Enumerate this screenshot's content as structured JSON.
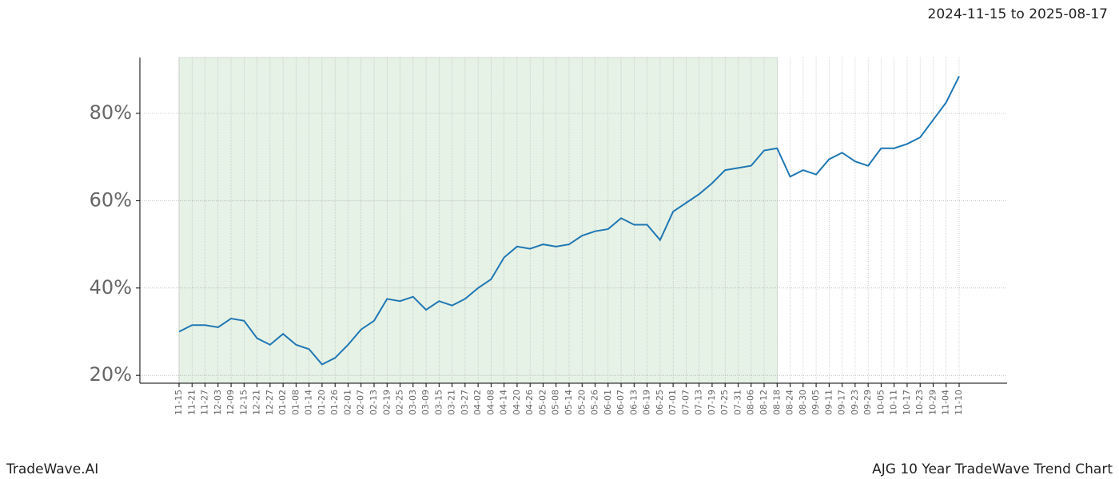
{
  "header": {
    "date_range": "2024-11-15 to 2025-08-17"
  },
  "footer": {
    "brand": "TradeWave.AI",
    "chart_name": "AJG 10 Year TradeWave Trend Chart"
  },
  "chart_data": {
    "type": "line",
    "categories": [
      "11-15",
      "11-21",
      "11-27",
      "12-03",
      "12-09",
      "12-15",
      "12-21",
      "12-27",
      "01-02",
      "01-08",
      "01-14",
      "01-20",
      "01-26",
      "02-01",
      "02-07",
      "02-13",
      "02-19",
      "02-25",
      "03-03",
      "03-09",
      "03-15",
      "03-21",
      "03-27",
      "04-02",
      "04-08",
      "04-14",
      "04-20",
      "04-26",
      "05-02",
      "05-08",
      "05-14",
      "05-20",
      "05-26",
      "06-01",
      "06-07",
      "06-13",
      "06-19",
      "06-25",
      "07-01",
      "07-07",
      "07-13",
      "07-19",
      "07-25",
      "07-31",
      "08-06",
      "08-12",
      "08-18",
      "08-24",
      "08-30",
      "09-05",
      "09-11",
      "09-17",
      "09-23",
      "09-29",
      "10-05",
      "10-11",
      "10-17",
      "10-23",
      "10-29",
      "11-04",
      "11-10"
    ],
    "values": [
      30,
      31.5,
      31.5,
      31,
      33,
      32.5,
      28.5,
      27,
      29.5,
      27,
      26,
      22.5,
      24,
      27,
      30.5,
      32.5,
      37.5,
      37,
      38,
      35,
      37,
      36,
      37.5,
      40,
      42,
      47,
      49.5,
      49,
      50,
      49.5,
      50,
      52,
      53,
      53.5,
      56,
      54.5,
      54.5,
      51,
      57.5,
      59.5,
      61.5,
      64,
      67,
      67.5,
      68,
      71.5,
      72,
      65.5,
      67,
      66,
      69.5,
      71,
      69,
      68,
      72,
      72,
      73,
      74.5,
      78.5,
      82.5,
      88.5
    ],
    "color": "#1f77b4",
    "shaded_range": [
      0,
      46
    ],
    "shade_color": "#e6f2e6",
    "ylim": [
      18.2,
      92.8
    ],
    "yticks": [
      {
        "value": 20,
        "label": "20%"
      },
      {
        "value": 40,
        "label": "40%"
      },
      {
        "value": 60,
        "label": "60%"
      },
      {
        "value": 80,
        "label": "80%"
      }
    ],
    "grid": true
  }
}
